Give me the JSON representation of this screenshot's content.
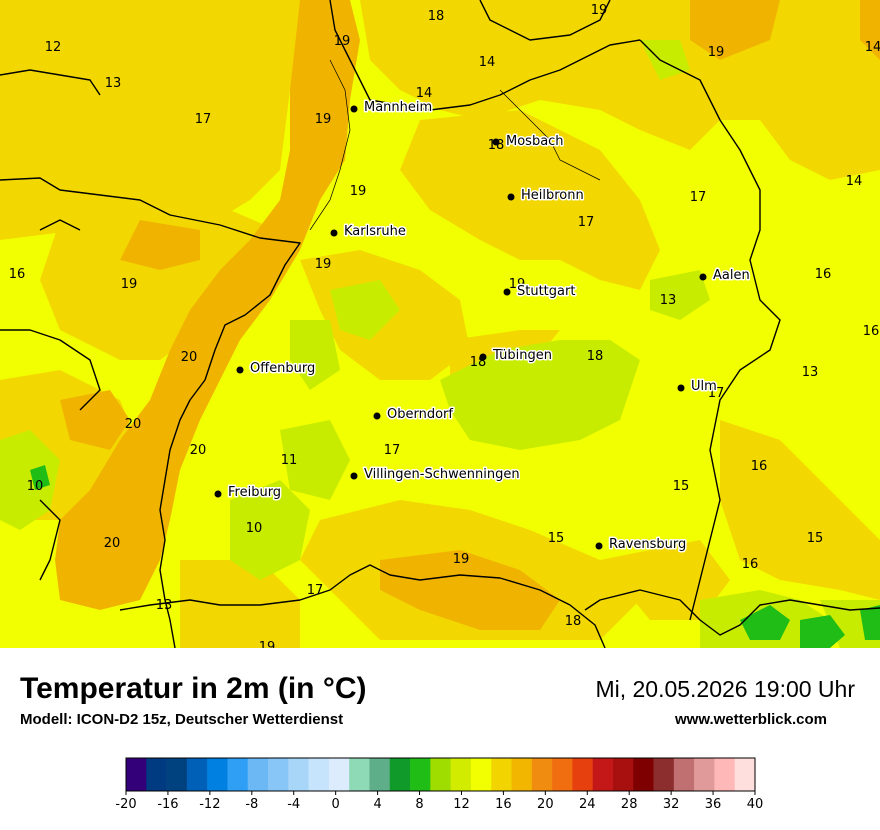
{
  "header": {
    "title": "Temperatur in 2m (in °C)",
    "subtitle": "Modell: ICON-D2 15z, Deutscher Wetterdienst",
    "datetime": "Mi, 20.05.2026 19:00 Uhr",
    "website": "www.wetterblick.com"
  },
  "cities": [
    {
      "name": "Mannheim"
    },
    {
      "name": "Mosbach"
    },
    {
      "name": "Heilbronn"
    },
    {
      "name": "Karlsruhe"
    },
    {
      "name": "Stuttgart"
    },
    {
      "name": "Aalen"
    },
    {
      "name": "Tübingen"
    },
    {
      "name": "Offenburg"
    },
    {
      "name": "Ulm"
    },
    {
      "name": "Oberndorf"
    },
    {
      "name": "Villingen-Schwenningen"
    },
    {
      "name": "Freiburg"
    },
    {
      "name": "Ravensburg"
    }
  ],
  "temperatures": [
    "18",
    "19",
    "19",
    "12",
    "19",
    "14",
    "14",
    "13",
    "17",
    "19",
    "14",
    "18",
    "17",
    "19",
    "14",
    "19",
    "17",
    "16",
    "19",
    "19",
    "18",
    "16",
    "13",
    "16",
    "20",
    "18",
    "13",
    "17",
    "20",
    "17",
    "20",
    "16",
    "15",
    "10",
    "11",
    "15",
    "10",
    "20",
    "15",
    "19",
    "16",
    "17",
    "18",
    "19",
    "13",
    "19"
  ],
  "legend": {
    "unit": "°C",
    "ticks": [
      "-20",
      "-16",
      "-12",
      "-8",
      "-4",
      "0",
      "4",
      "8",
      "12",
      "16",
      "20",
      "24",
      "28",
      "32",
      "36",
      "40"
    ],
    "colors": [
      "#33007a",
      "#003a80",
      "#00427f",
      "#0060b8",
      "#0080e0",
      "#2e9ff5",
      "#6cb8f5",
      "#87c6f7",
      "#a8d6f8",
      "#c6e4fb",
      "#dcecfc",
      "#8ed9b6",
      "#5fae8a",
      "#0f9a2a",
      "#1fbd16",
      "#9fdc00",
      "#d2ec00",
      "#f1ff00",
      "#f2d400",
      "#f2b600",
      "#f08c10",
      "#f06e10",
      "#e6400e",
      "#c41818",
      "#a81010",
      "#7e0000",
      "#8c2e2e",
      "#c07070",
      "#e09a9a",
      "#ffb8b8",
      "#ffdede"
    ],
    "land_colors": {
      "cool": "#c7ec00",
      "mild": "#f2ff00",
      "warm": "#f2d800",
      "hot": "#f0b400",
      "green": "#28b81c"
    }
  }
}
